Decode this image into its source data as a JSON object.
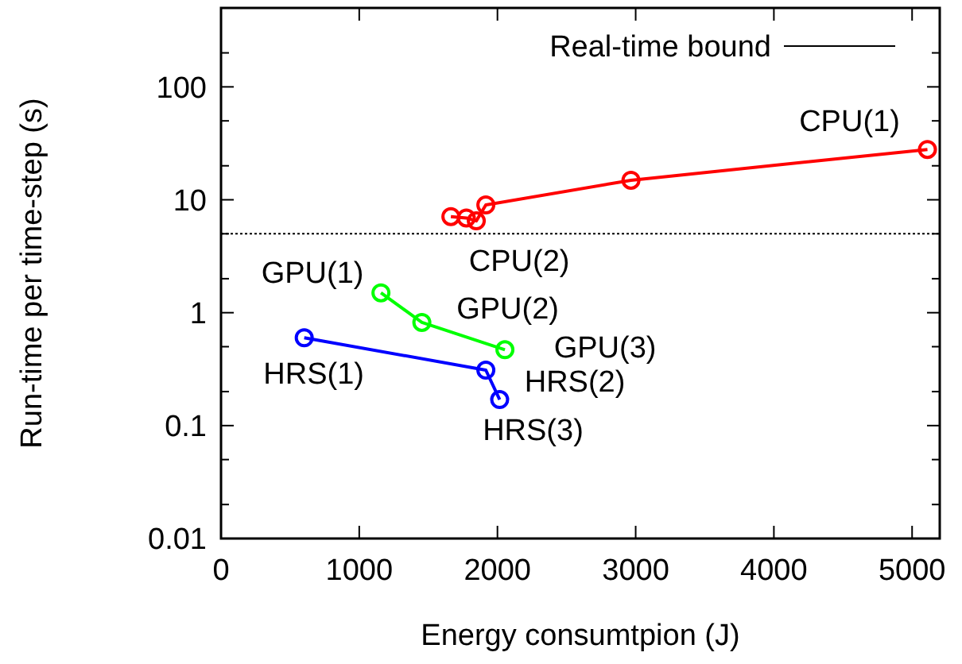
{
  "chart_data": {
    "type": "line",
    "xlabel": "Energy consumtpion (J)",
    "ylabel": "Run-time per time-step (s)",
    "log": "y",
    "marker": "circle",
    "legend": "top right",
    "grid": false,
    "xlim": [
      0,
      5200
    ],
    "xticks": [
      0,
      1000,
      2000,
      3000,
      4000,
      5000
    ],
    "ylim": [
      0.01,
      500
    ],
    "yticks": [
      0.01,
      {
        "value": 0.02,
        "label": null
      },
      {
        "value": 0.05,
        "label": null
      },
      0.1,
      {
        "value": 0.2,
        "label": null
      },
      {
        "value": 0.5,
        "label": null
      },
      1,
      {
        "value": 2,
        "label": null
      },
      {
        "value": 5,
        "label": null
      },
      10,
      {
        "value": 20,
        "label": null
      },
      {
        "value": 50,
        "label": null
      },
      100,
      {
        "value": 200,
        "label": null
      }
    ],
    "series": [
      {
        "color": "#ff0000",
        "x": [
          1663,
          1775,
          1847,
          1916,
          2966,
          5111
        ],
        "values": [
          7.1,
          6.9,
          6.5,
          9.0,
          14.9,
          27.9
        ]
      },
      {
        "color": "#00ff00",
        "x": [
          1157,
          1453,
          2054
        ],
        "values": [
          1.5,
          0.82,
          0.47
        ]
      },
      {
        "color": "#0000ff",
        "x": [
          602,
          1916,
          2016
        ],
        "values": [
          0.6,
          0.31,
          0.17
        ]
      }
    ],
    "ref_lines": [
      {
        "axis": "y",
        "value": 5,
        "label": "Real-time bound",
        "color": "#000000",
        "line_style": "dotted"
      }
    ],
    "annotations": [
      {
        "text": "CPU(1)",
        "x": 5111,
        "y": 27.9
      },
      {
        "text": "CPU(2)",
        "x": 1847,
        "y": 6.5
      },
      {
        "text": "GPU(1)",
        "x": 1157,
        "y": 1.5
      },
      {
        "text": "GPU(2)",
        "x": 1453,
        "y": 0.82
      },
      {
        "text": "GPU(3)",
        "x": 2054,
        "y": 0.47
      },
      {
        "text": "HRS(1)",
        "x": 602,
        "y": 0.6
      },
      {
        "text": "HRS(2)",
        "x": 1916,
        "y": 0.31
      },
      {
        "text": "HRS(3)",
        "x": 2016,
        "y": 0.17
      }
    ]
  }
}
